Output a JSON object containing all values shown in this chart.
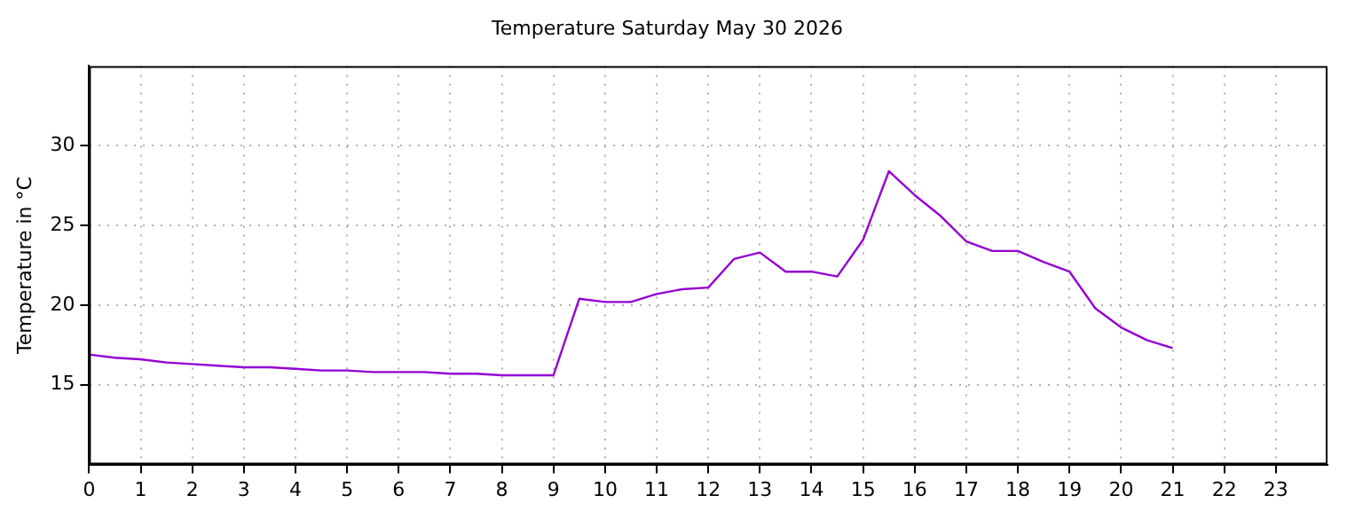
{
  "chart_data": {
    "type": "line",
    "title": "Temperature Saturday May 30 2026",
    "ylabel": "Temperature in °C",
    "x": [
      0,
      0.5,
      1,
      1.5,
      2,
      2.5,
      3,
      3.5,
      4,
      4.5,
      5,
      5.5,
      6,
      6.5,
      7,
      7.5,
      8,
      8.5,
      9,
      9.5,
      10,
      10.5,
      11,
      11.5,
      12,
      12.5,
      13,
      13.5,
      14,
      14.5,
      15,
      15.5,
      16,
      16.5,
      17,
      17.5,
      18,
      18.5,
      19,
      19.5,
      20,
      20.5,
      21
    ],
    "series": [
      {
        "color": "#9400d3",
        "values": [
          16.9,
          16.7,
          16.6,
          16.4,
          16.3,
          16.2,
          16.1,
          16.1,
          16.0,
          15.9,
          15.9,
          15.8,
          15.8,
          15.8,
          15.7,
          15.7,
          15.6,
          15.6,
          15.6,
          20.4,
          20.2,
          20.2,
          20.7,
          21.0,
          21.1,
          22.9,
          23.3,
          22.1,
          22.1,
          21.8,
          24.1,
          28.4,
          26.9,
          25.6,
          24.0,
          23.4,
          23.4,
          22.7,
          22.1,
          19.8,
          18.6,
          17.8,
          17.3
        ]
      }
    ],
    "xlim": [
      0,
      24
    ],
    "xticks": [
      0,
      1,
      2,
      3,
      4,
      5,
      6,
      7,
      8,
      9,
      10,
      11,
      12,
      13,
      14,
      15,
      16,
      17,
      18,
      19,
      20,
      21,
      22,
      23
    ],
    "ylim": [
      10,
      35
    ],
    "yticks": [
      15,
      20,
      25,
      30
    ],
    "grid": true,
    "legend": false,
    "marker": "none",
    "line_style": "solid"
  }
}
